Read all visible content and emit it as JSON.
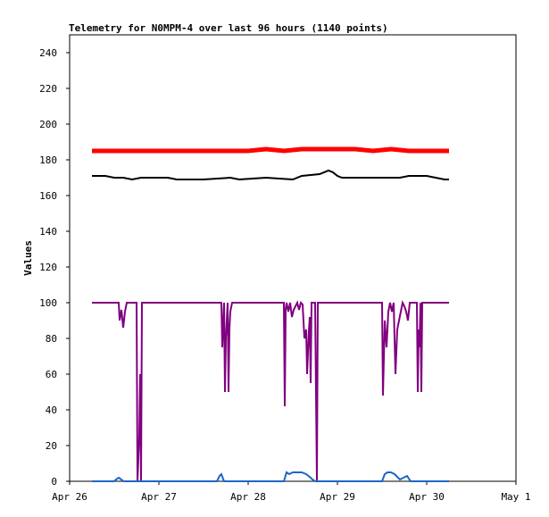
{
  "chart_data": {
    "type": "line",
    "title": "Telemetry for N0MPM-4 over last 96 hours (1140 points)",
    "xlabel": "",
    "ylabel": "Values",
    "xlim": [
      "Apr 26",
      "May 1"
    ],
    "ylim": [
      0,
      250
    ],
    "grid": false,
    "legend": "none",
    "x_ticks": [
      "Apr 26",
      "Apr 27",
      "Apr 28",
      "Apr 29",
      "Apr 30",
      "May 1"
    ],
    "y_ticks": [
      0,
      20,
      40,
      60,
      80,
      100,
      120,
      140,
      160,
      180,
      200,
      220,
      240
    ],
    "series": [
      {
        "color": "#ff0000",
        "x": [
          0.25,
          0.6,
          1.0,
          1.5,
          2.0,
          2.2,
          2.4,
          2.6,
          2.8,
          3.0,
          3.2,
          3.4,
          3.6,
          3.8,
          4.0,
          4.2,
          4.25
        ],
        "y": [
          185,
          185,
          185,
          185,
          185,
          186,
          185,
          186,
          186,
          186,
          186,
          185,
          186,
          185,
          185,
          185,
          185
        ]
      },
      {
        "color": "#000000",
        "x": [
          0.25,
          0.4,
          0.5,
          0.6,
          0.7,
          0.8,
          1.1,
          1.2,
          1.5,
          1.8,
          1.9,
          2.2,
          2.5,
          2.6,
          2.8,
          2.9,
          2.95,
          3.0,
          3.05,
          3.1,
          3.3,
          3.5,
          3.7,
          3.8,
          4.0,
          4.1,
          4.2,
          4.25
        ],
        "y": [
          171,
          171,
          170,
          170,
          169,
          170,
          170,
          169,
          169,
          170,
          169,
          170,
          169,
          171,
          172,
          174,
          173,
          171,
          170,
          170,
          170,
          170,
          170,
          171,
          171,
          170,
          169,
          169
        ]
      },
      {
        "color": "#800080",
        "x": [
          0.25,
          0.55,
          0.56,
          0.58,
          0.6,
          0.62,
          0.64,
          0.65,
          0.66,
          0.75,
          0.76,
          0.78,
          0.79,
          0.8,
          0.81,
          0.82,
          0.83,
          0.84,
          1.7,
          1.71,
          1.73,
          1.74,
          1.75,
          1.77,
          1.78,
          1.79,
          1.8,
          1.82,
          1.83,
          2.4,
          2.41,
          2.42,
          2.43,
          2.45,
          2.47,
          2.49,
          2.51,
          2.53,
          2.55,
          2.57,
          2.59,
          2.61,
          2.63,
          2.65,
          2.66,
          2.68,
          2.69,
          2.7,
          2.71,
          2.73,
          2.75,
          2.76,
          2.77,
          2.78,
          2.79,
          2.8,
          2.9,
          3.0,
          3.01,
          3.02,
          3.05,
          3.5,
          3.51,
          3.53,
          3.55,
          3.57,
          3.59,
          3.61,
          3.63,
          3.65,
          3.67,
          3.69,
          3.71,
          3.73,
          3.75,
          3.77,
          3.79,
          3.81,
          3.83,
          3.85,
          3.87,
          3.89,
          3.9,
          3.91,
          3.92,
          3.93,
          3.94,
          3.95,
          4.0,
          4.25
        ],
        "y": [
          100,
          100,
          90,
          96,
          86,
          95,
          100,
          100,
          100,
          100,
          0,
          25,
          60,
          0,
          100,
          100,
          100,
          100,
          100,
          75,
          100,
          50,
          80,
          100,
          50,
          85,
          95,
          100,
          100,
          100,
          42,
          96,
          100,
          95,
          100,
          92,
          96,
          98,
          100,
          96,
          100,
          99,
          80,
          85,
          60,
          84,
          92,
          55,
          100,
          100,
          100,
          50,
          0,
          100,
          100,
          100,
          100,
          100,
          100,
          100,
          100,
          100,
          48,
          90,
          75,
          95,
          100,
          95,
          100,
          60,
          85,
          90,
          95,
          100,
          98,
          95,
          90,
          100,
          100,
          100,
          100,
          100,
          50,
          85,
          75,
          100,
          50,
          100,
          100,
          100
        ]
      },
      {
        "color": "#1e64c8",
        "x": [
          0.25,
          0.5,
          0.52,
          0.55,
          0.58,
          0.6,
          1.65,
          1.68,
          1.7,
          1.73,
          2.4,
          2.43,
          2.46,
          2.5,
          2.55,
          2.6,
          2.65,
          2.7,
          2.72,
          2.75,
          2.8,
          3.5,
          3.53,
          3.56,
          3.6,
          3.64,
          3.66,
          3.7,
          3.74,
          3.78,
          3.82,
          3.86,
          4.25
        ],
        "y": [
          0,
          0,
          1,
          2,
          1,
          0,
          0,
          3,
          4,
          0,
          0,
          5,
          4,
          5,
          5,
          5,
          4,
          2,
          1,
          0,
          0,
          0,
          4,
          5,
          5,
          4,
          3,
          1,
          2,
          3,
          0,
          0,
          0
        ]
      }
    ]
  }
}
